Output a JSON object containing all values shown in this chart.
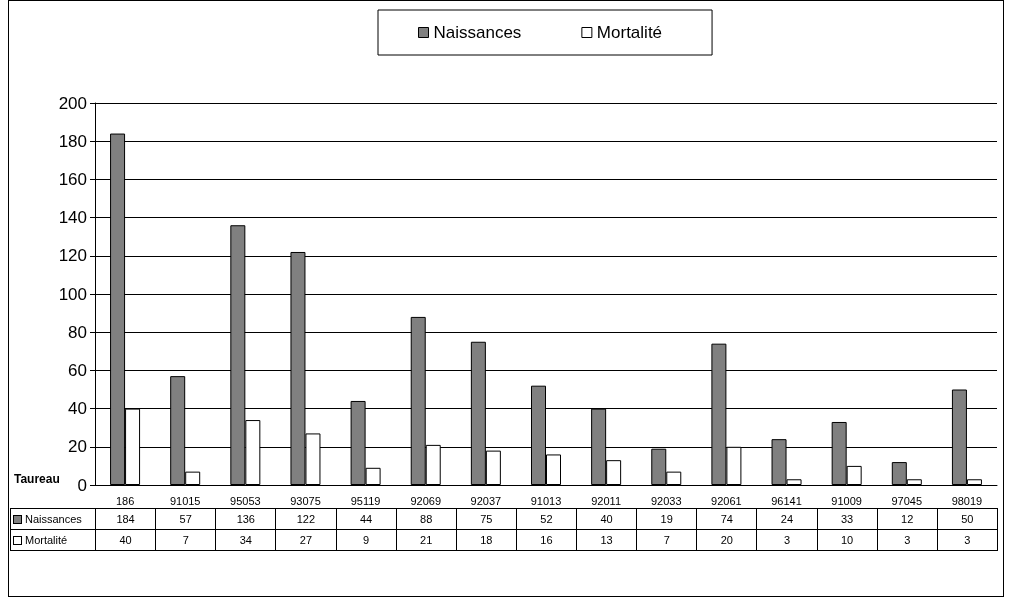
{
  "chart_data": {
    "type": "bar",
    "xlabel": "Taureau",
    "categories": [
      "186",
      "91015",
      "95053",
      "93075",
      "95119",
      "92069",
      "92037",
      "91013",
      "92011",
      "92033",
      "92061",
      "96141",
      "91009",
      "97045",
      "98019"
    ],
    "series": [
      {
        "name": "Naissances",
        "color": "#808080",
        "values": [
          184,
          57,
          136,
          122,
          44,
          88,
          75,
          52,
          40,
          19,
          74,
          24,
          33,
          12,
          50
        ]
      },
      {
        "name": "Mortalité",
        "color": "#ffffff",
        "values": [
          40,
          7,
          34,
          27,
          9,
          21,
          18,
          16,
          13,
          7,
          20,
          3,
          10,
          3,
          3
        ]
      }
    ],
    "ylim": [
      0,
      200
    ],
    "yticks": [
      0,
      20,
      40,
      60,
      80,
      100,
      120,
      140,
      160,
      180,
      200
    ],
    "grid": "y",
    "legend": "top",
    "data_labels": true
  }
}
